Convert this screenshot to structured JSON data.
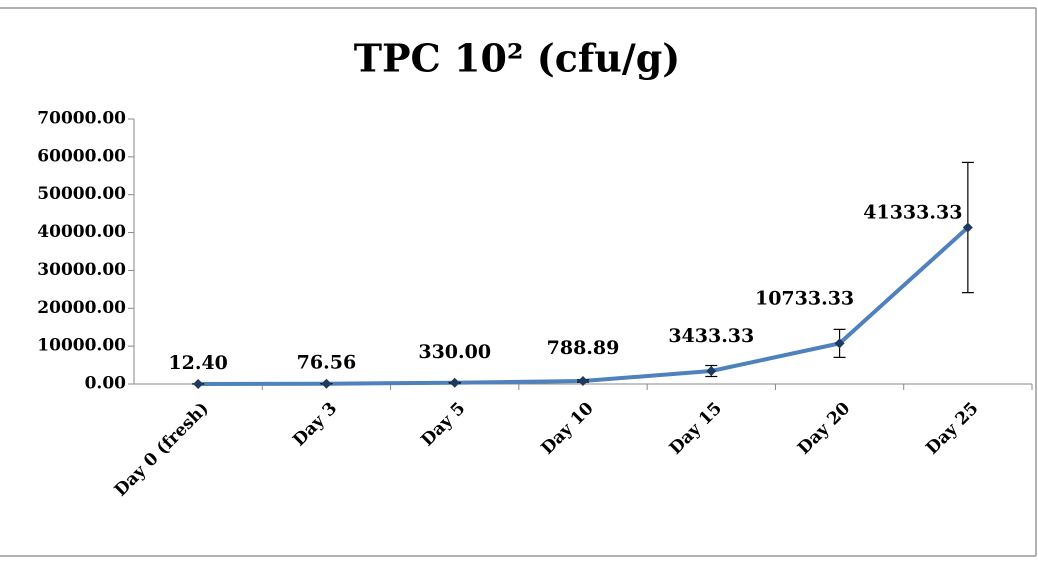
{
  "chart_data": {
    "type": "line",
    "title": "TPC 10² (cfu/g)",
    "categories": [
      "Day 0 (fresh)",
      "Day 3",
      "Day 5",
      "Day 10",
      "Day 15",
      "Day 20",
      "Day 25"
    ],
    "series": [
      {
        "name": "TPC",
        "color": "#4f81bd",
        "values": [
          12.4,
          76.56,
          330.0,
          788.89,
          3433.33,
          10733.33,
          41333.33
        ],
        "value_labels": [
          "12.40",
          "76.56",
          "330.00",
          "788.89",
          "3433.33",
          "10733.33",
          "41333.33"
        ],
        "errors": [
          5,
          20,
          100,
          300,
          1450,
          3700,
          17200
        ]
      }
    ],
    "ylim": [
      0,
      70000
    ],
    "yticks": [
      {
        "value": 0,
        "label": "0.00"
      },
      {
        "value": 10000,
        "label": "10000.00"
      },
      {
        "value": 20000,
        "label": "20000.00"
      },
      {
        "value": 30000,
        "label": "30000.00"
      },
      {
        "value": 40000,
        "label": "40000.00"
      },
      {
        "value": 50000,
        "label": "50000.00"
      },
      {
        "value": 60000,
        "label": "60000.00"
      },
      {
        "value": 70000,
        "label": "70000.00"
      }
    ]
  }
}
